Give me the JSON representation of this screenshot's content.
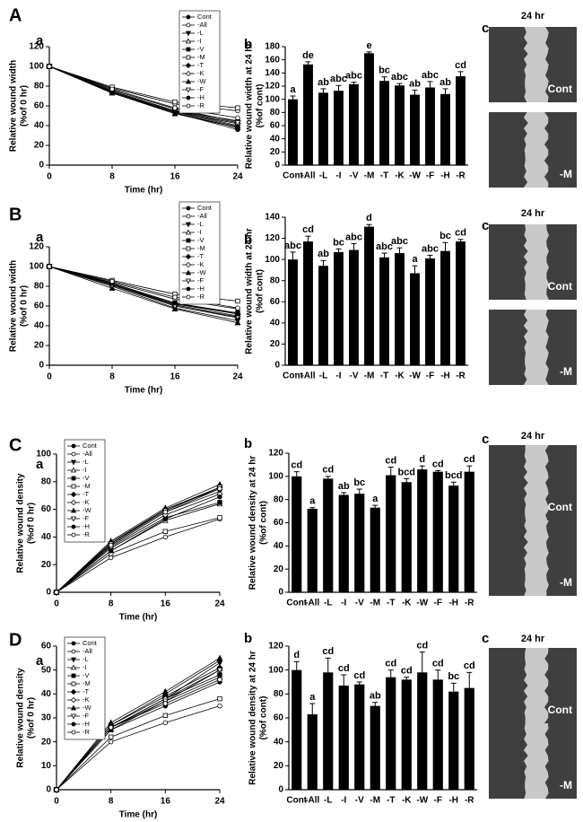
{
  "panels": [
    {
      "letter": "A",
      "line": "a",
      "bar": "b",
      "image": "c",
      "image_title": "24 hr",
      "image_labels": [
        "Cont",
        "-M"
      ]
    },
    {
      "letter": "B",
      "line": "a",
      "bar": "b",
      "image": "c",
      "image_title": "24 hr",
      "image_labels": [
        "Cont",
        "-M"
      ]
    },
    {
      "letter": "C",
      "line": "a",
      "bar": "b",
      "image": "c",
      "image_title": "24 hr",
      "image_labels": [
        "Cont",
        "-M"
      ]
    },
    {
      "letter": "D",
      "line": "a",
      "bar": "b",
      "image": "c",
      "image_title": "24 hr",
      "image_labels": [
        "Cont",
        "-M"
      ]
    }
  ],
  "chart_data": [
    {
      "type": "line",
      "xlabel": "Time (hr)",
      "ylabel": [
        "Relative wound width",
        "(%of 0 hr)"
      ],
      "x": [
        0,
        8,
        16,
        24
      ],
      "xlim": [
        0,
        24
      ],
      "xticks": [
        0,
        8,
        16,
        24
      ],
      "ylim": [
        0,
        120
      ],
      "yticks": [
        0,
        20,
        40,
        60,
        80,
        100,
        120
      ],
      "legend": "upper right",
      "series": [
        {
          "name": "Cont",
          "color": "#000000",
          "marker": "circle",
          "values": [
            100,
            74,
            53,
            36
          ]
        },
        {
          "name": "-All",
          "color": "#000000",
          "marker": "circle-open",
          "values": [
            100,
            78,
            62,
            55
          ]
        },
        {
          "name": "-L",
          "color": "#000000",
          "marker": "triangle-down",
          "values": [
            100,
            74,
            54,
            39
          ]
        },
        {
          "name": "-I",
          "color": "#000000",
          "marker": "triangle-up-open",
          "values": [
            100,
            75,
            55,
            40
          ]
        },
        {
          "name": "-V",
          "color": "#000000",
          "marker": "square",
          "values": [
            100,
            76,
            57,
            44
          ]
        },
        {
          "name": "-M",
          "color": "#000000",
          "marker": "square-open",
          "values": [
            100,
            79,
            64,
            58
          ]
        },
        {
          "name": "-T",
          "color": "#000000",
          "marker": "diamond",
          "values": [
            100,
            75,
            55,
            45
          ]
        },
        {
          "name": "-K",
          "color": "#000000",
          "marker": "diamond-open",
          "values": [
            100,
            74,
            54,
            42
          ]
        },
        {
          "name": "-W",
          "color": "#000000",
          "marker": "triangle-up",
          "values": [
            100,
            73,
            52,
            38
          ]
        },
        {
          "name": "-F",
          "color": "#000000",
          "marker": "triangle-down-open",
          "values": [
            100,
            75,
            55,
            43
          ]
        },
        {
          "name": "-H",
          "color": "#000000",
          "marker": "circle",
          "values": [
            100,
            73,
            53,
            38
          ]
        },
        {
          "name": "-R",
          "color": "#000000",
          "marker": "circle-open",
          "values": [
            100,
            77,
            58,
            48
          ]
        }
      ]
    },
    {
      "type": "bar",
      "ylabel": [
        "Relative wound width at 24 hr",
        "(%of cont)"
      ],
      "categories": [
        "Cont",
        "-All",
        "-L",
        "-I",
        "-V",
        "-M",
        "-T",
        "-K",
        "-W",
        "-F",
        "-H",
        "-R"
      ],
      "color": "#000000",
      "values": [
        100,
        153,
        110,
        113,
        123,
        170,
        128,
        121,
        107,
        118,
        108,
        135
      ],
      "errors": [
        5,
        4,
        6,
        8,
        3,
        2,
        6,
        3,
        7,
        9,
        8,
        7
      ],
      "annotations": [
        "a",
        "de",
        "ab",
        "abc",
        "abc",
        "e",
        "bc",
        "abc",
        "ab",
        "abc",
        "ab",
        "cd"
      ],
      "ylim": [
        0,
        180
      ],
      "yticks": [
        0,
        20,
        40,
        60,
        80,
        100,
        120,
        140,
        160,
        180
      ]
    },
    {
      "type": "line",
      "xlabel": "Time (hr)",
      "ylabel": [
        "Relative wound width",
        "(%of 0 hr)"
      ],
      "x": [
        0,
        8,
        16,
        24
      ],
      "xlim": [
        0,
        24
      ],
      "xticks": [
        0,
        8,
        16,
        24
      ],
      "ylim": [
        0,
        120
      ],
      "yticks": [
        0,
        20,
        40,
        60,
        80,
        100,
        120
      ],
      "legend": "upper right",
      "series": [
        {
          "name": "Cont",
          "color": "#000000",
          "marker": "circle",
          "values": [
            100,
            82,
            60,
            48
          ]
        },
        {
          "name": "-All",
          "color": "#000000",
          "marker": "circle-open",
          "values": [
            100,
            84,
            67,
            57
          ]
        },
        {
          "name": "-L",
          "color": "#000000",
          "marker": "triangle-down",
          "values": [
            100,
            80,
            58,
            45
          ]
        },
        {
          "name": "-I",
          "color": "#000000",
          "marker": "triangle-up-open",
          "values": [
            100,
            82,
            62,
            52
          ]
        },
        {
          "name": "-V",
          "color": "#000000",
          "marker": "square",
          "values": [
            100,
            83,
            63,
            53
          ]
        },
        {
          "name": "-M",
          "color": "#000000",
          "marker": "square-open",
          "values": [
            100,
            86,
            72,
            65
          ]
        },
        {
          "name": "-T",
          "color": "#000000",
          "marker": "diamond",
          "values": [
            100,
            82,
            61,
            50
          ]
        },
        {
          "name": "-K",
          "color": "#000000",
          "marker": "diamond-open",
          "values": [
            100,
            83,
            63,
            52
          ]
        },
        {
          "name": "-W",
          "color": "#000000",
          "marker": "triangle-up",
          "values": [
            100,
            78,
            57,
            43
          ]
        },
        {
          "name": "-F",
          "color": "#000000",
          "marker": "triangle-down-open",
          "values": [
            100,
            81,
            60,
            49
          ]
        },
        {
          "name": "-H",
          "color": "#000000",
          "marker": "circle",
          "values": [
            100,
            83,
            63,
            52
          ]
        },
        {
          "name": "-R",
          "color": "#000000",
          "marker": "circle-open",
          "values": [
            100,
            85,
            69,
            58
          ]
        }
      ]
    },
    {
      "type": "bar",
      "ylabel": [
        "Relative wound width at 24 hr",
        "(%of cont)"
      ],
      "categories": [
        "Cont",
        "-All",
        "-L",
        "-I",
        "-V",
        "-M",
        "-T",
        "-K",
        "-W",
        "-F",
        "-H",
        "-R"
      ],
      "color": "#000000",
      "values": [
        100,
        117,
        94,
        107,
        109,
        131,
        102,
        106,
        87,
        101,
        108,
        117
      ],
      "errors": [
        7,
        5,
        5,
        3,
        6,
        2,
        4,
        5,
        7,
        3,
        8,
        2
      ],
      "annotations": [
        "abc",
        "cd",
        "ab",
        "bc",
        "abc",
        "d",
        "abc",
        "abc",
        "a",
        "abc",
        "bc",
        "cd"
      ],
      "ylim": [
        0,
        140
      ],
      "yticks": [
        0,
        20,
        40,
        60,
        80,
        100,
        120,
        140
      ]
    },
    {
      "type": "line",
      "xlabel": "Time (hr)",
      "ylabel": [
        "Relative wound density",
        "(%of 0 hr)"
      ],
      "x": [
        0,
        8,
        16,
        24
      ],
      "xlim": [
        0,
        24
      ],
      "xticks": [
        0,
        8,
        16,
        24
      ],
      "ylim": [
        0,
        100
      ],
      "yticks": [
        0,
        20,
        40,
        60,
        80,
        100
      ],
      "legend": "upper left",
      "series": [
        {
          "name": "Cont",
          "color": "#000000",
          "marker": "circle",
          "values": [
            0,
            35,
            60,
            75
          ]
        },
        {
          "name": "-All",
          "color": "#000000",
          "marker": "circle-open",
          "values": [
            0,
            25,
            40,
            53
          ]
        },
        {
          "name": "-L",
          "color": "#000000",
          "marker": "triangle-down",
          "values": [
            0,
            34,
            58,
            73
          ]
        },
        {
          "name": "-I",
          "color": "#000000",
          "marker": "triangle-up-open",
          "values": [
            0,
            30,
            52,
            64
          ]
        },
        {
          "name": "-V",
          "color": "#000000",
          "marker": "square",
          "values": [
            0,
            32,
            54,
            65
          ]
        },
        {
          "name": "-M",
          "color": "#000000",
          "marker": "square-open",
          "values": [
            0,
            28,
            44,
            54
          ]
        },
        {
          "name": "-T",
          "color": "#000000",
          "marker": "diamond",
          "values": [
            0,
            36,
            60,
            76
          ]
        },
        {
          "name": "-K",
          "color": "#000000",
          "marker": "diamond-open",
          "values": [
            0,
            33,
            56,
            71
          ]
        },
        {
          "name": "-W",
          "color": "#000000",
          "marker": "triangle-up",
          "values": [
            0,
            37,
            61,
            78
          ]
        },
        {
          "name": "-F",
          "color": "#000000",
          "marker": "triangle-down-open",
          "values": [
            0,
            35,
            59,
            76
          ]
        },
        {
          "name": "-H",
          "color": "#000000",
          "marker": "circle",
          "values": [
            0,
            30,
            53,
            69
          ]
        },
        {
          "name": "-R",
          "color": "#000000",
          "marker": "circle-open",
          "values": [
            0,
            34,
            58,
            75
          ]
        }
      ]
    },
    {
      "type": "bar",
      "ylabel": [
        "Relative wound density at 24 hr",
        "(%of cont)"
      ],
      "categories": [
        "Cont",
        "-All",
        "-L",
        "-I",
        "-V",
        "-M",
        "-T",
        "-K",
        "-W",
        "-F",
        "-H",
        "-R"
      ],
      "color": "#000000",
      "values": [
        100,
        72,
        98,
        84,
        85,
        73,
        101,
        95,
        106,
        104,
        92,
        104
      ],
      "errors": [
        4,
        1,
        2,
        2,
        4,
        2,
        7,
        3,
        3,
        1,
        3,
        5
      ],
      "annotations": [
        "cd",
        "a",
        "cd",
        "ab",
        "bc",
        "a",
        "cd",
        "bcd",
        "d",
        "cd",
        "bcd",
        "cd"
      ],
      "ylim": [
        0,
        120
      ],
      "yticks": [
        0,
        20,
        40,
        60,
        80,
        100,
        120
      ]
    },
    {
      "type": "line",
      "xlabel": "Time (hr)",
      "ylabel": [
        "Relative wound density",
        "(%of 0 hr)"
      ],
      "x": [
        0,
        8,
        16,
        24
      ],
      "xlim": [
        0,
        24
      ],
      "xticks": [
        0,
        8,
        16,
        24
      ],
      "ylim": [
        0,
        60
      ],
      "yticks": [
        0,
        10,
        20,
        30,
        40,
        50,
        60
      ],
      "legend": "upper left",
      "series": [
        {
          "name": "Cont",
          "color": "#000000",
          "marker": "circle",
          "values": [
            0,
            27,
            40,
            54
          ]
        },
        {
          "name": "-All",
          "color": "#000000",
          "marker": "circle-open",
          "values": [
            0,
            20,
            28,
            35
          ]
        },
        {
          "name": "-L",
          "color": "#000000",
          "marker": "triangle-down",
          "values": [
            0,
            26,
            38,
            53
          ]
        },
        {
          "name": "-I",
          "color": "#000000",
          "marker": "triangle-up-open",
          "values": [
            0,
            25,
            37,
            47
          ]
        },
        {
          "name": "-V",
          "color": "#000000",
          "marker": "square",
          "values": [
            0,
            26,
            38,
            48
          ]
        },
        {
          "name": "-M",
          "color": "#000000",
          "marker": "square-open",
          "values": [
            0,
            22,
            31,
            38
          ]
        },
        {
          "name": "-T",
          "color": "#000000",
          "marker": "diamond",
          "values": [
            0,
            27,
            39,
            51
          ]
        },
        {
          "name": "-K",
          "color": "#000000",
          "marker": "diamond-open",
          "values": [
            0,
            26,
            38,
            50
          ]
        },
        {
          "name": "-W",
          "color": "#000000",
          "marker": "triangle-up",
          "values": [
            0,
            28,
            41,
            55
          ]
        },
        {
          "name": "-F",
          "color": "#000000",
          "marker": "triangle-down-open",
          "values": [
            0,
            26,
            37,
            50
          ]
        },
        {
          "name": "-H",
          "color": "#000000",
          "marker": "circle",
          "values": [
            0,
            25,
            35,
            45
          ]
        },
        {
          "name": "-R",
          "color": "#000000",
          "marker": "circle-open",
          "values": [
            0,
            26,
            36,
            46
          ]
        }
      ]
    },
    {
      "type": "bar",
      "ylabel": [
        "Relative wound density at 24 hr",
        "(%of cont)"
      ],
      "categories": [
        "Cont",
        "-All",
        "-L",
        "-I",
        "-V",
        "-M",
        "-T",
        "-K",
        "-W",
        "-F",
        "-H",
        "-R"
      ],
      "color": "#000000",
      "values": [
        100,
        63,
        98,
        87,
        88,
        70,
        94,
        92,
        98,
        92,
        82,
        85
      ],
      "errors": [
        7,
        9,
        12,
        9,
        2,
        3,
        6,
        2,
        17,
        8,
        7,
        13
      ],
      "annotations": [
        "d",
        "a",
        "cd",
        "cd",
        "cd",
        "ab",
        "cd",
        "cd",
        "cd",
        "cd",
        "bc",
        "cd"
      ],
      "ylim": [
        0,
        120
      ],
      "yticks": [
        0,
        20,
        40,
        60,
        80,
        100,
        120
      ]
    }
  ]
}
